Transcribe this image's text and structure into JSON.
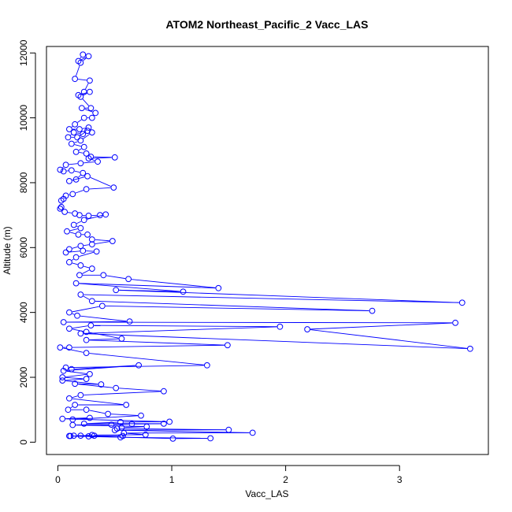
{
  "chart_data": {
    "type": "line",
    "title": "ATOM2 Northeast_Pacific_2 Vacc_LAS",
    "xlabel": "Vacc_LAS",
    "ylabel": "Altitude (m)",
    "xlim": [
      -0.1,
      3.78
    ],
    "ylim": [
      -380,
      12200
    ],
    "xticks": [
      0,
      1,
      2,
      3
    ],
    "yticks": [
      0,
      2000,
      4000,
      6000,
      8000,
      10000,
      12000
    ],
    "markers": "open-circle",
    "grid": false,
    "legend": "none",
    "color": "#0000ff",
    "series": [
      {
        "points": [
          [
            0.22,
            11950
          ],
          [
            0.18,
            11750
          ],
          [
            0.27,
            11900
          ],
          [
            0.2,
            11700
          ],
          [
            0.15,
            11200
          ],
          [
            0.28,
            11150
          ],
          [
            0.23,
            10800
          ],
          [
            0.18,
            10700
          ],
          [
            0.28,
            10800
          ],
          [
            0.2,
            10650
          ],
          [
            0.29,
            10300
          ],
          [
            0.21,
            10300
          ],
          [
            0.33,
            10150
          ],
          [
            0.3,
            10000
          ],
          [
            0.23,
            10000
          ],
          [
            0.15,
            9800
          ],
          [
            0.1,
            9650
          ],
          [
            0.19,
            9650
          ],
          [
            0.27,
            9700
          ],
          [
            0.22,
            9500
          ],
          [
            0.14,
            9550
          ],
          [
            0.09,
            9400
          ],
          [
            0.17,
            9400
          ],
          [
            0.26,
            9600
          ],
          [
            0.3,
            9550
          ],
          [
            0.2,
            9300
          ],
          [
            0.12,
            9200
          ],
          [
            0.23,
            9100
          ],
          [
            0.16,
            8950
          ],
          [
            0.25,
            8900
          ],
          [
            0.29,
            8800
          ],
          [
            0.5,
            8780
          ],
          [
            0.27,
            8750
          ],
          [
            0.35,
            8650
          ],
          [
            0.2,
            8600
          ],
          [
            0.07,
            8550
          ],
          [
            0.02,
            8400
          ],
          [
            0.05,
            8350
          ],
          [
            0.12,
            8380
          ],
          [
            0.22,
            8300
          ],
          [
            0.16,
            8100
          ],
          [
            0.1,
            8050
          ],
          [
            0.26,
            8200
          ],
          [
            0.49,
            7850
          ],
          [
            0.25,
            7800
          ],
          [
            0.13,
            7650
          ],
          [
            0.07,
            7600
          ],
          [
            0.05,
            7500
          ],
          [
            0.03,
            7450
          ],
          [
            0.03,
            7250
          ],
          [
            0.02,
            7200
          ],
          [
            0.06,
            7100
          ],
          [
            0.15,
            7050
          ],
          [
            0.19,
            7000
          ],
          [
            0.27,
            6980
          ],
          [
            0.37,
            7000
          ],
          [
            0.42,
            7020
          ],
          [
            0.23,
            6850
          ],
          [
            0.14,
            6700
          ],
          [
            0.2,
            6600
          ],
          [
            0.08,
            6500
          ],
          [
            0.18,
            6400
          ],
          [
            0.26,
            6400
          ],
          [
            0.3,
            6250
          ],
          [
            0.48,
            6200
          ],
          [
            0.3,
            6100
          ],
          [
            0.2,
            6050
          ],
          [
            0.1,
            5950
          ],
          [
            0.07,
            5850
          ],
          [
            0.22,
            5900
          ],
          [
            0.34,
            5880
          ],
          [
            0.16,
            5700
          ],
          [
            0.1,
            5550
          ],
          [
            0.2,
            5450
          ],
          [
            0.3,
            5350
          ],
          [
            0.19,
            5150
          ],
          [
            0.4,
            5150
          ],
          [
            0.62,
            5030
          ],
          [
            1.41,
            4750
          ],
          [
            0.16,
            4900
          ],
          [
            1.1,
            4640
          ],
          [
            0.51,
            4690
          ],
          [
            3.55,
            4300
          ],
          [
            0.2,
            4550
          ],
          [
            0.3,
            4350
          ],
          [
            2.76,
            4050
          ],
          [
            0.39,
            4200
          ],
          [
            0.1,
            4000
          ],
          [
            0.17,
            3900
          ],
          [
            0.63,
            3720
          ],
          [
            0.05,
            3700
          ],
          [
            3.49,
            3680
          ],
          [
            2.19,
            3480
          ],
          [
            3.62,
            2880
          ],
          [
            0.2,
            3350
          ],
          [
            1.95,
            3560
          ],
          [
            0.29,
            3600
          ],
          [
            0.1,
            3500
          ],
          [
            0.25,
            3400
          ],
          [
            0.56,
            3190
          ],
          [
            0.25,
            3150
          ],
          [
            1.49,
            2990
          ],
          [
            0.1,
            2920
          ],
          [
            0.02,
            2920
          ],
          [
            0.25,
            2750
          ],
          [
            1.31,
            2370
          ],
          [
            0.07,
            2300
          ],
          [
            0.12,
            2250
          ],
          [
            0.71,
            2370
          ],
          [
            0.05,
            2200
          ],
          [
            0.28,
            2100
          ],
          [
            0.04,
            2000
          ],
          [
            0.25,
            1950
          ],
          [
            0.04,
            1900
          ],
          [
            0.38,
            1780
          ],
          [
            0.15,
            1800
          ],
          [
            0.51,
            1670
          ],
          [
            0.93,
            1570
          ],
          [
            0.2,
            1450
          ],
          [
            0.1,
            1350
          ],
          [
            0.6,
            1150
          ],
          [
            0.15,
            1150
          ],
          [
            0.09,
            1000
          ],
          [
            0.25,
            1000
          ],
          [
            0.44,
            870
          ],
          [
            0.73,
            820
          ],
          [
            0.13,
            700
          ],
          [
            0.28,
            750
          ],
          [
            0.04,
            720
          ],
          [
            0.98,
            630
          ],
          [
            0.55,
            620
          ],
          [
            0.23,
            570
          ],
          [
            0.93,
            570
          ],
          [
            0.65,
            560
          ],
          [
            0.47,
            540
          ],
          [
            0.13,
            530
          ],
          [
            0.78,
            480
          ],
          [
            0.56,
            450
          ],
          [
            0.52,
            420
          ],
          [
            1.5,
            380
          ],
          [
            0.5,
            370
          ],
          [
            1.71,
            290
          ],
          [
            0.58,
            280
          ],
          [
            0.77,
            230
          ],
          [
            0.3,
            220
          ],
          [
            0.2,
            200
          ],
          [
            0.32,
            200
          ],
          [
            0.14,
            200
          ],
          [
            0.57,
            190
          ],
          [
            0.11,
            190
          ],
          [
            0.55,
            150
          ],
          [
            1.34,
            120
          ],
          [
            1.01,
            110
          ],
          [
            0.27,
            180
          ],
          [
            0.1,
            190
          ]
        ]
      }
    ]
  }
}
